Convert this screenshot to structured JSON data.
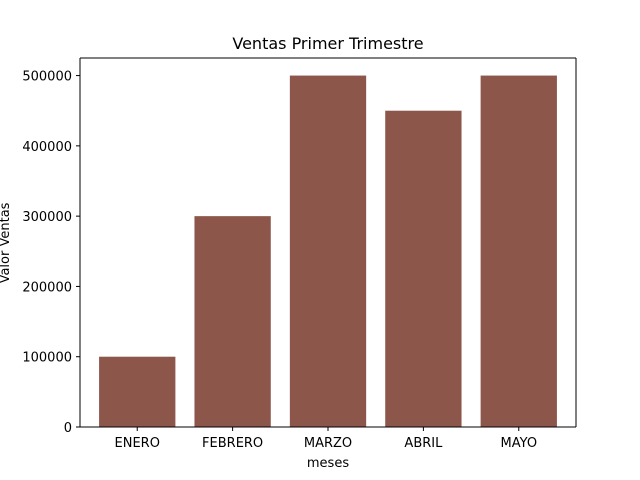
{
  "chart_data": {
    "type": "bar",
    "title": "Ventas Primer Trimestre",
    "xlabel": "meses",
    "ylabel": "Valor Ventas",
    "categories": [
      "ENERO",
      "FEBRERO",
      "MARZO",
      "ABRIL",
      "MAYO"
    ],
    "values": [
      100000,
      300000,
      500000,
      450000,
      500000
    ],
    "ylim": [
      0,
      525000
    ],
    "yticks": [
      0,
      100000,
      200000,
      300000,
      400000,
      500000
    ],
    "bar_color": "#8c564b",
    "grid": false,
    "legend": "none"
  }
}
